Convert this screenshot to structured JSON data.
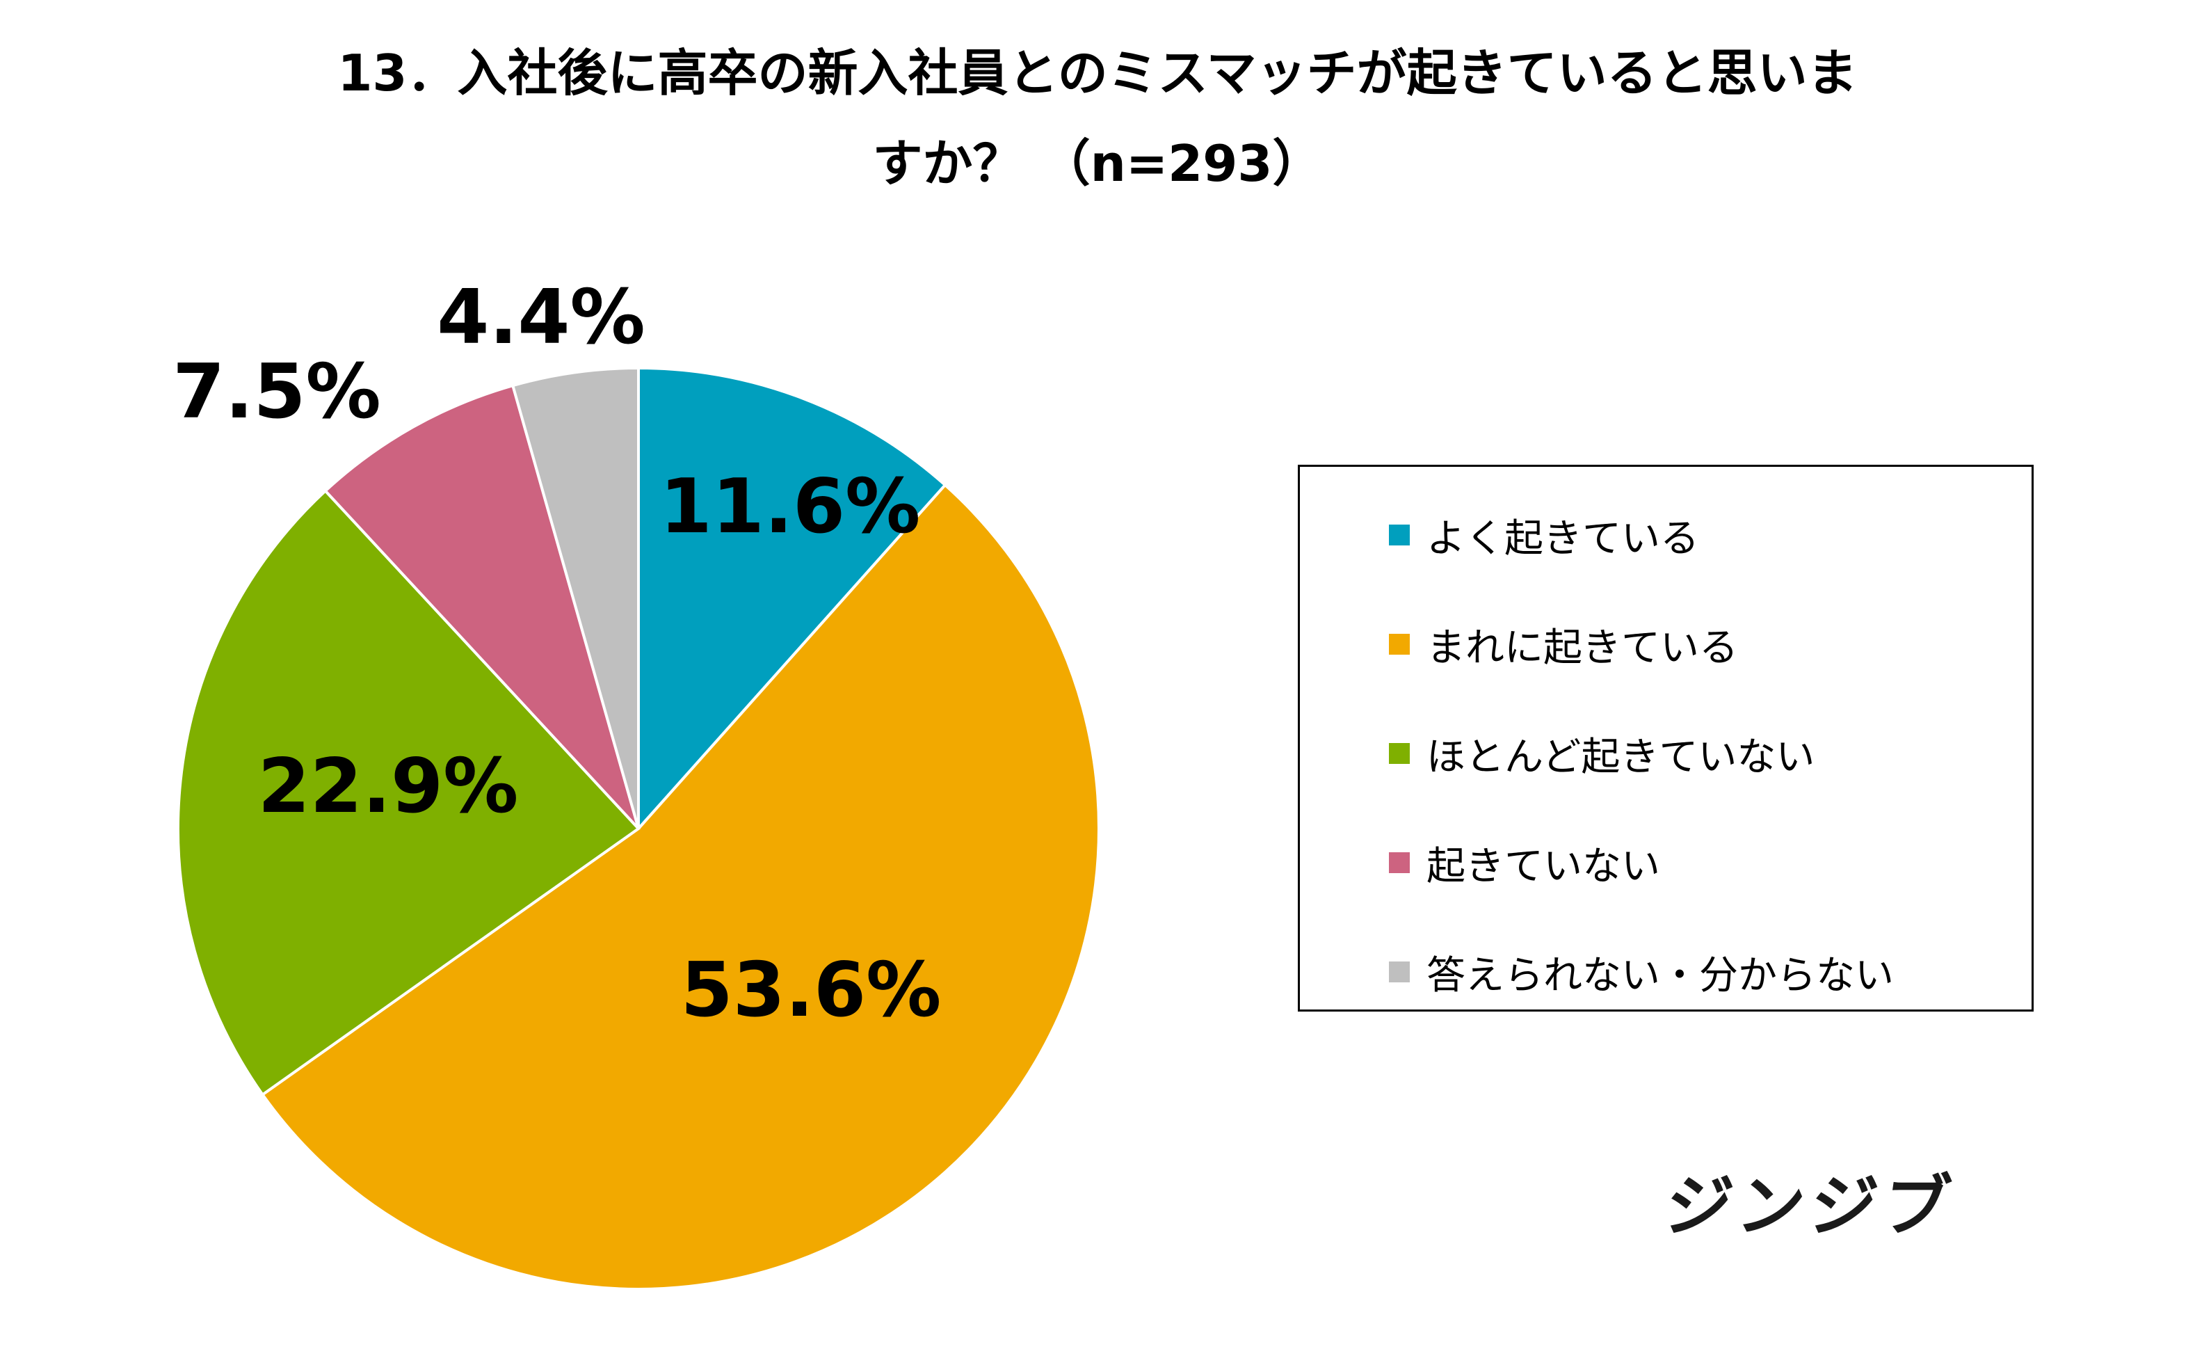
{
  "title": {
    "line1": "13．入社後に高卒の新入社員とのミスマッチが起きていると思いま",
    "line2": "すか？ （n=293）"
  },
  "chart_data": {
    "type": "pie",
    "title": "13．入社後に高卒の新入社員とのミスマッチが起きていると思いますか？ （n=293）",
    "categories": [
      "よく起きている",
      "まれに起きている",
      "ほとんど起きていない",
      "起きていない",
      "答えられない・分からない"
    ],
    "values": [
      11.6,
      53.6,
      22.9,
      7.5,
      4.4
    ],
    "labels": [
      "11.6%",
      "53.6%",
      "22.9%",
      "7.5%",
      "4.4%"
    ],
    "colors": [
      "#009FBE",
      "#F2A900",
      "#7FB000",
      "#CD6380",
      "#BFBFBF"
    ],
    "start_angle": "12 o'clock",
    "direction": "clockwise",
    "legend_position": "right"
  },
  "legend": {
    "items": [
      {
        "label": "よく起きている",
        "color": "#009FBE"
      },
      {
        "label": "まれに起きている",
        "color": "#F2A900"
      },
      {
        "label": "ほとんど起きていない",
        "color": "#7FB000"
      },
      {
        "label": "起きていない",
        "color": "#CD6380"
      },
      {
        "label": "答えられない・分からない",
        "color": "#BFBFBF"
      }
    ]
  },
  "logo": {
    "text": "ジンジブ"
  }
}
